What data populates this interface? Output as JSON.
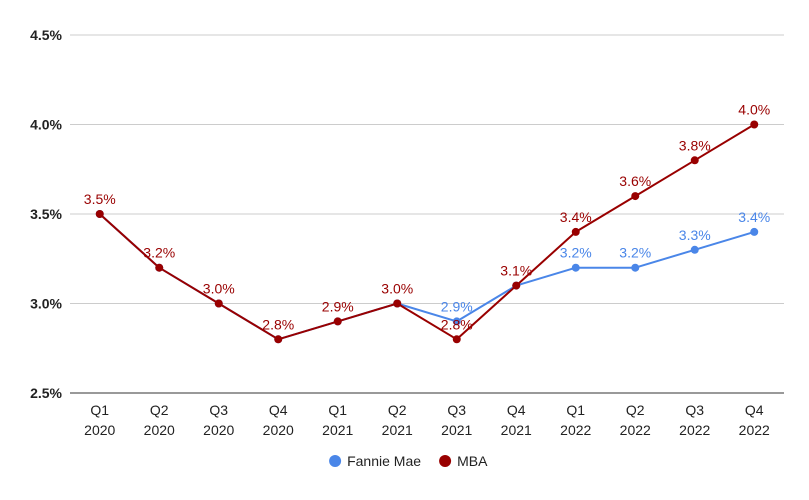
{
  "chart_data": {
    "type": "line",
    "categories": [
      [
        "Q1",
        "2020"
      ],
      [
        "Q2",
        "2020"
      ],
      [
        "Q3",
        "2020"
      ],
      [
        "Q4",
        "2020"
      ],
      [
        "Q1",
        "2021"
      ],
      [
        "Q2",
        "2021"
      ],
      [
        "Q3",
        "2021"
      ],
      [
        "Q4",
        "2021"
      ],
      [
        "Q1",
        "2022"
      ],
      [
        "Q2",
        "2022"
      ],
      [
        "Q3",
        "2022"
      ],
      [
        "Q4",
        "2022"
      ]
    ],
    "ylim": [
      2.5,
      4.5
    ],
    "yticks": [
      2.5,
      3.0,
      3.5,
      4.0,
      4.5
    ],
    "ytick_labels": [
      "2.5%",
      "3.0%",
      "3.5%",
      "4.0%",
      "4.5%"
    ],
    "grid": true,
    "legend_position": "bottom",
    "series": [
      {
        "name": "Fannie Mae",
        "color": "#4a86e8",
        "values": [
          3.5,
          3.2,
          3.0,
          2.8,
          2.9,
          3.0,
          2.9,
          3.1,
          3.2,
          3.2,
          3.3,
          3.4
        ],
        "labels": [
          null,
          null,
          null,
          null,
          null,
          null,
          "2.9%",
          null,
          "3.2%",
          "3.2%",
          "3.3%",
          "3.4%"
        ]
      },
      {
        "name": "MBA",
        "color": "#990000",
        "values": [
          3.5,
          3.2,
          3.0,
          2.8,
          2.9,
          3.0,
          2.8,
          3.1,
          3.4,
          3.6,
          3.8,
          4.0
        ],
        "labels": [
          "3.5%",
          "3.2%",
          "3.0%",
          "2.8%",
          "2.9%",
          "3.0%",
          "2.8%",
          "3.1%",
          "3.4%",
          "3.6%",
          "3.8%",
          "4.0%"
        ]
      }
    ]
  }
}
